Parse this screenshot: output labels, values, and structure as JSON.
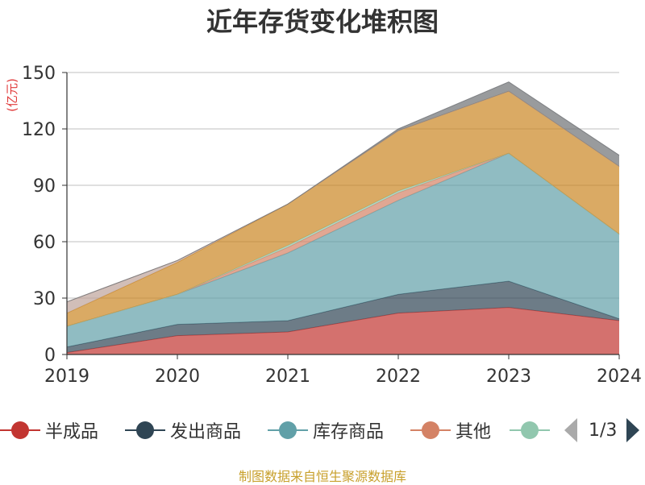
{
  "chart_data": {
    "type": "area",
    "title": "近年存货变化堆积图",
    "ylabel": "(亿元)",
    "xlabel": "",
    "categories": [
      "2019",
      "2020",
      "2021",
      "2022",
      "2023",
      "2024"
    ],
    "ylim": [
      0,
      150
    ],
    "yticks": [
      0,
      30,
      60,
      90,
      120,
      150
    ],
    "stacked": true,
    "grid": true,
    "series": [
      {
        "name": "半成品",
        "color": "#c23531",
        "values": [
          1,
          10,
          12,
          22,
          25,
          18
        ]
      },
      {
        "name": "发出商品",
        "color": "#2f4554",
        "values": [
          3,
          6,
          6,
          10,
          14,
          1
        ]
      },
      {
        "name": "库存商品",
        "color": "#61a0a8",
        "values": [
          11,
          16,
          36,
          50,
          68,
          45
        ]
      },
      {
        "name": "其他",
        "color": "#d48265",
        "values": [
          0,
          0,
          3,
          4,
          0,
          0
        ]
      },
      {
        "name": "",
        "color": "#91c7ae",
        "values": [
          0,
          0,
          1,
          1,
          0,
          0
        ]
      },
      {
        "name": "",
        "color": "#ca8622",
        "values": [
          7,
          17,
          22,
          32,
          33,
          36
        ]
      },
      {
        "name": "",
        "color": "#bda29a",
        "values": [
          6,
          1,
          0,
          0,
          0,
          0
        ]
      },
      {
        "name": "",
        "color": "#6e7074",
        "values": [
          0,
          0,
          0,
          1,
          5,
          6
        ]
      }
    ]
  },
  "legend": {
    "items": [
      {
        "label": "半成品",
        "color": "#c23531"
      },
      {
        "label": "发出商品",
        "color": "#2f4554"
      },
      {
        "label": "库存商品",
        "color": "#61a0a8"
      },
      {
        "label": "其他",
        "color": "#d48265"
      },
      {
        "label": "",
        "color": "#91c7ae"
      }
    ],
    "page": "1/3"
  },
  "footer": {
    "source": "制图数据来自恒生聚源数据库"
  }
}
